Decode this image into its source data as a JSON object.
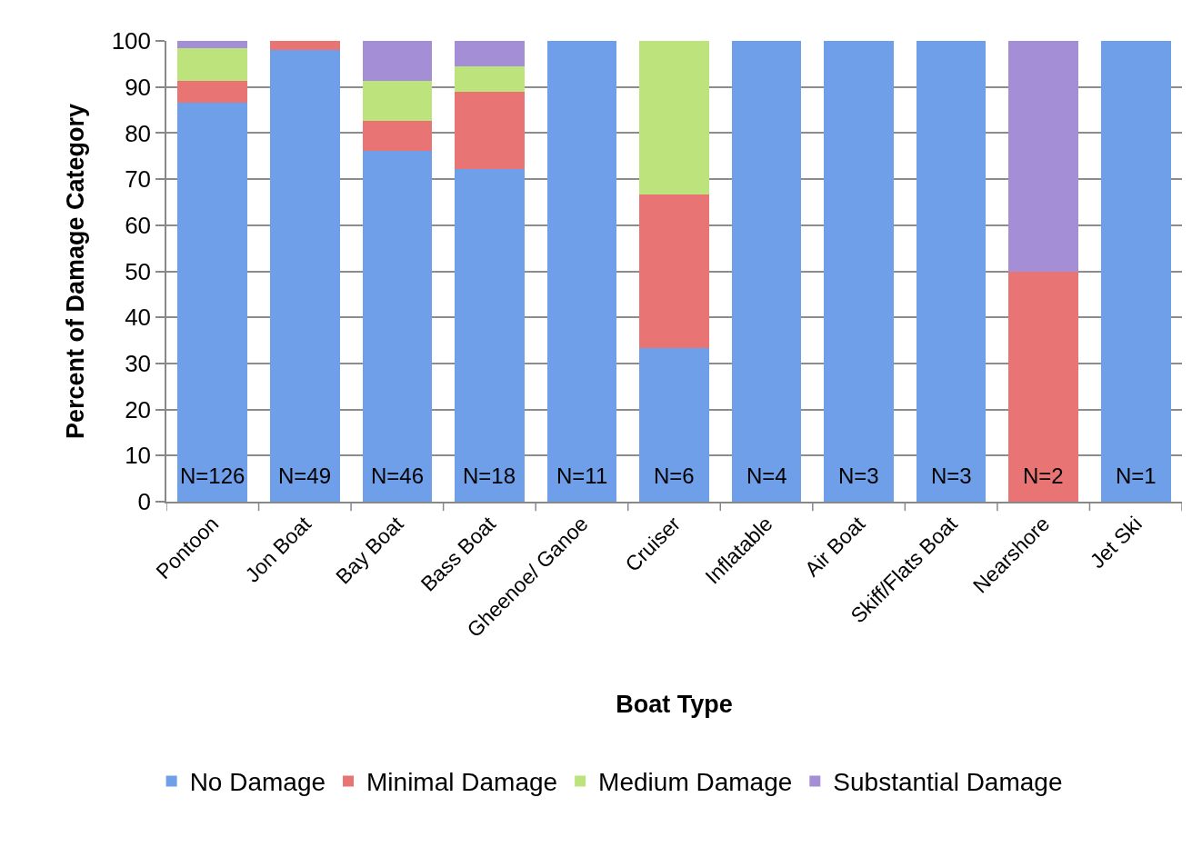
{
  "chart_data": {
    "type": "bar",
    "stacked": true,
    "xlabel": "Boat Type",
    "ylabel": "Percent of Damage Category",
    "categories": [
      "Pontoon",
      "Jon Boat",
      "Bay Boat",
      "Bass Boat",
      "Gheenoe/ Ganoe",
      "Cruiser",
      "Inflatable",
      "Air Boat",
      "Skiff/Flats Boat",
      "Nearshore",
      "Jet Ski"
    ],
    "series": [
      {
        "name": "No Damage",
        "color": "#6e9fe8",
        "values": [
          86.5,
          98.0,
          76.1,
          72.2,
          100,
          33.3,
          100,
          100,
          100,
          null,
          100
        ]
      },
      {
        "name": "Minimal Damage",
        "color": "#e87474",
        "values": [
          4.8,
          2.0,
          6.5,
          16.7,
          null,
          33.3,
          null,
          null,
          null,
          50,
          null
        ]
      },
      {
        "name": "Medium Damage",
        "color": "#bde37c",
        "values": [
          7.1,
          null,
          8.7,
          5.6,
          null,
          33.4,
          null,
          null,
          null,
          null,
          null
        ]
      },
      {
        "name": "Substantial Damage",
        "color": "#a48ed6",
        "values": [
          1.6,
          null,
          8.7,
          5.5,
          null,
          null,
          null,
          null,
          null,
          50,
          null
        ]
      }
    ],
    "ylim": [
      0,
      100
    ],
    "yticks": [
      0,
      10,
      20,
      30,
      40,
      50,
      60,
      70,
      80,
      90,
      100
    ],
    "grid": "y",
    "legend": "bottom",
    "annotations": [
      "N=126",
      "N=49",
      "N=46",
      "N=18",
      "N=11",
      "N=6",
      "N=4",
      "N=3",
      "N=3",
      "N=2",
      "N=1"
    ]
  }
}
